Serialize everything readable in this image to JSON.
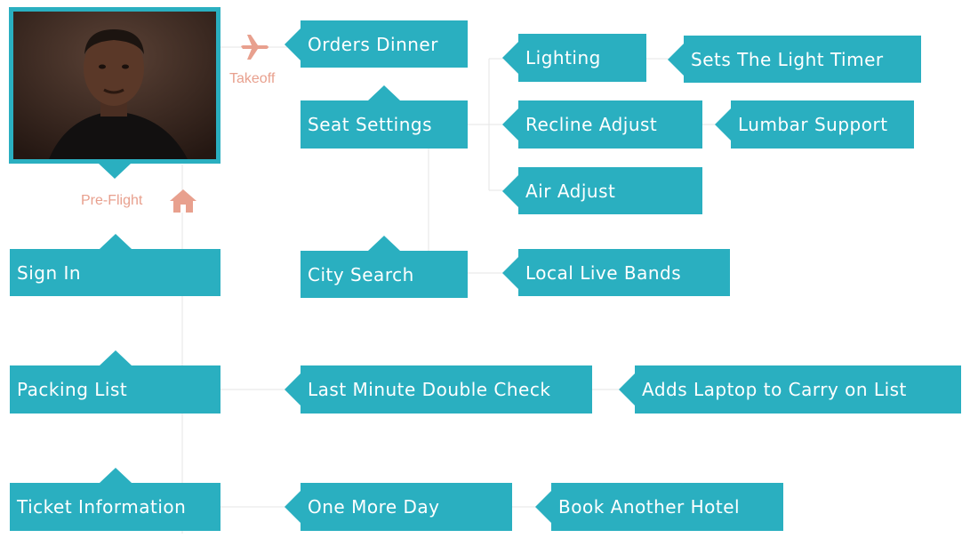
{
  "labels": {
    "takeoff": "Takeoff",
    "preflight": "Pre-Flight"
  },
  "icons": {
    "plane": "plane-icon",
    "home": "home-icon"
  },
  "colors": {
    "box": "#2aafc0",
    "accent": "#e8a08e",
    "line": "#e6e6e6"
  },
  "nodes": {
    "orders_dinner": "Orders Dinner",
    "seat_settings": "Seat Settings",
    "city_search": "City Search",
    "lighting": "Lighting",
    "sets_light_timer": "Sets The Light Timer",
    "recline_adjust": "Recline Adjust",
    "lumbar_support": "Lumbar Support",
    "air_adjust": "Air Adjust",
    "local_live_bands": "Local Live Bands",
    "sign_in": "Sign In",
    "packing_list": "Packing List",
    "last_minute_double_check": "Last Minute Double Check",
    "adds_laptop": "Adds Laptop to Carry on List",
    "ticket_information": "Ticket Information",
    "one_more_day": "One More Day",
    "book_another_hotel": "Book Another Hotel"
  }
}
